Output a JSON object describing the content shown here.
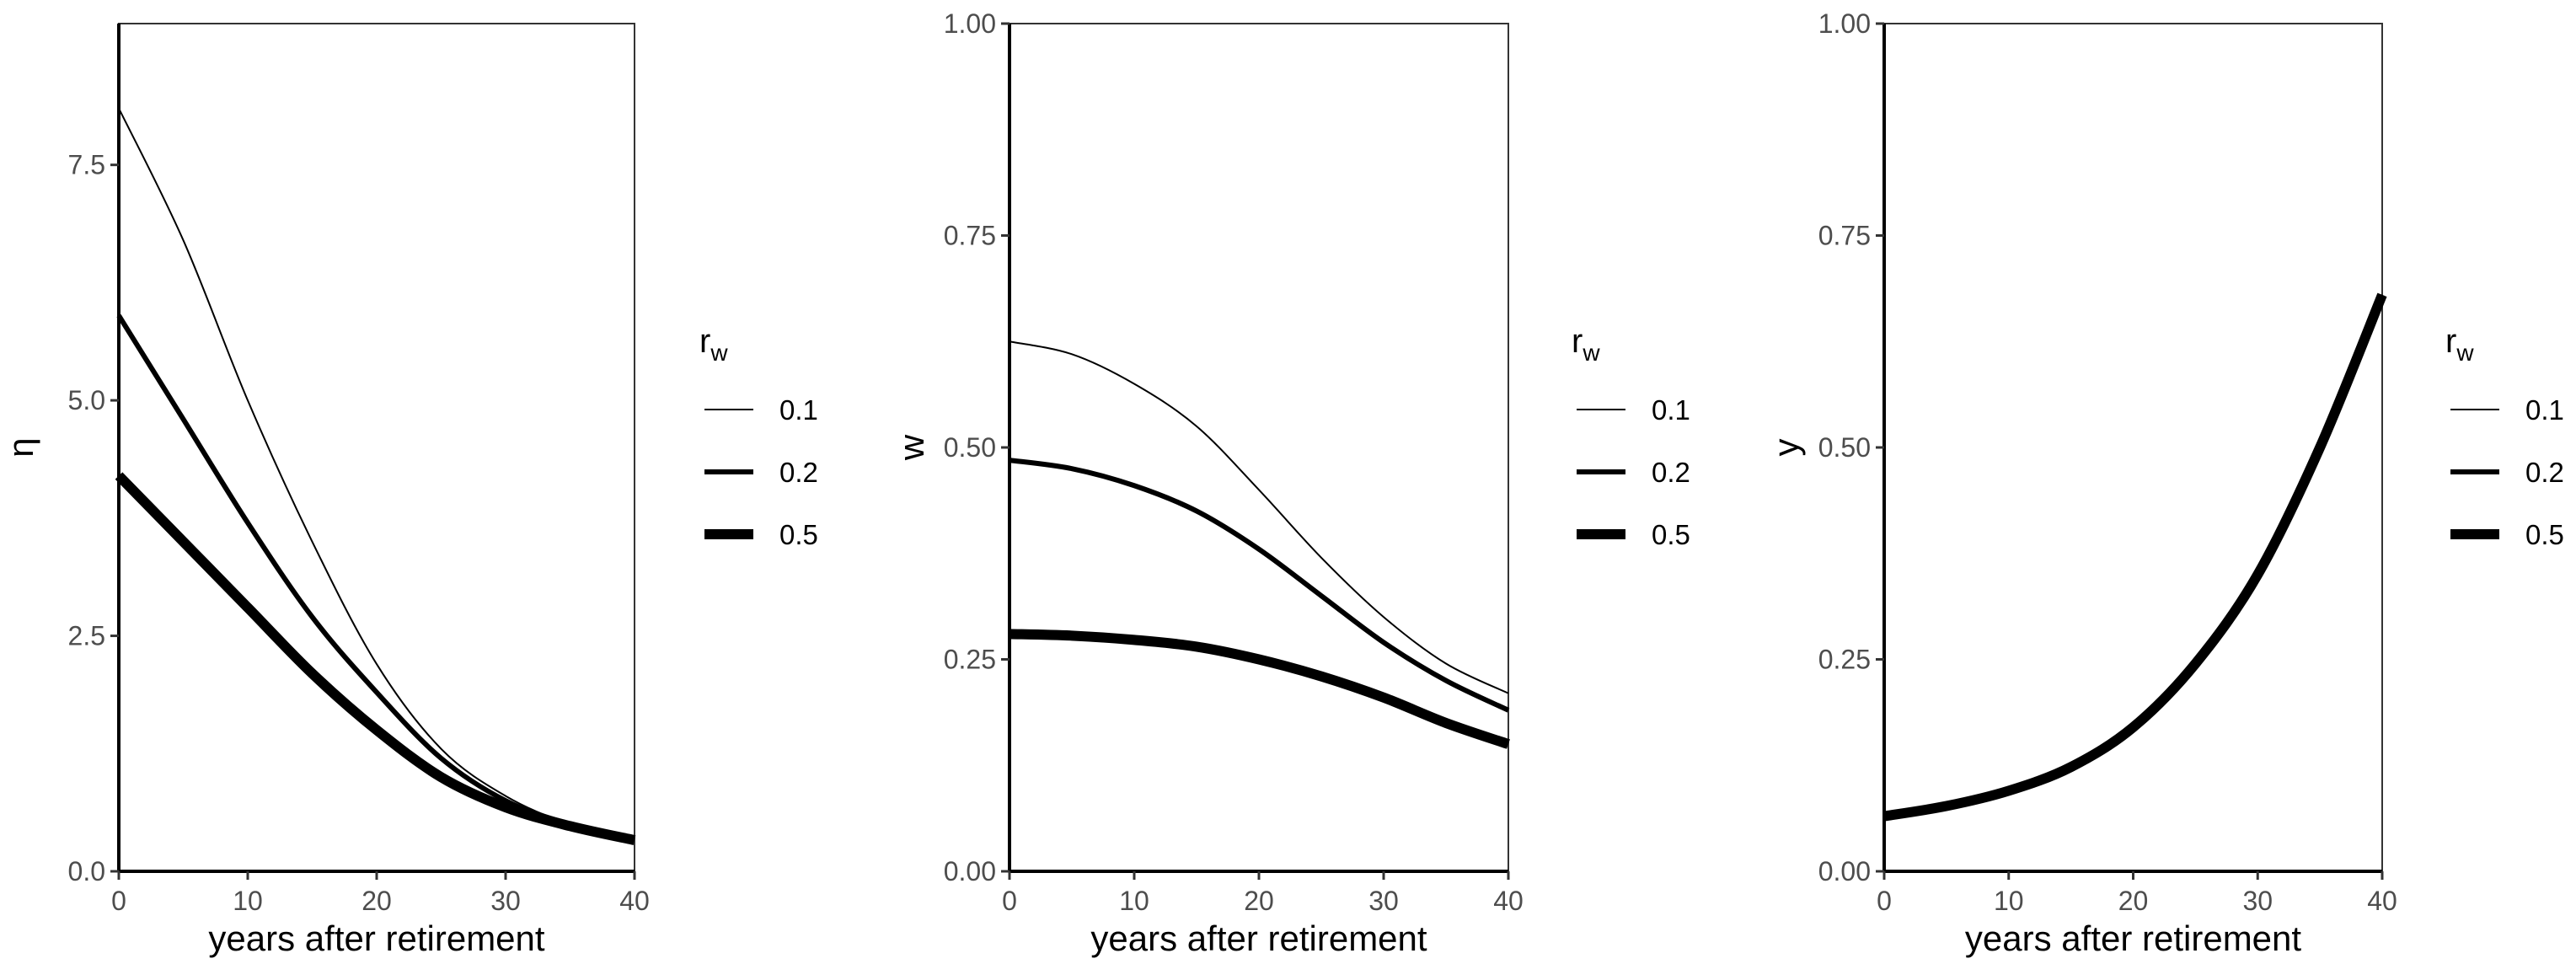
{
  "chart_data": [
    {
      "type": "line",
      "xlabel": "years after retirement",
      "ylabel": "η",
      "xlim": [
        0,
        40
      ],
      "ylim": [
        0,
        9
      ],
      "x_ticks": [
        0,
        10,
        20,
        30,
        40
      ],
      "y_ticks": [
        0.0,
        2.5,
        5.0,
        7.5
      ],
      "x_tick_labels": [
        "0",
        "10",
        "20",
        "30",
        "40"
      ],
      "y_tick_labels": [
        "0.0",
        "2.5",
        "5.0",
        "7.5"
      ],
      "grid": false,
      "legend": {
        "title_main": "r",
        "title_sub": "w",
        "position": "right",
        "entries": [
          "0.1",
          "0.2",
          "0.5"
        ]
      },
      "series": [
        {
          "name": "0.1",
          "x": [
            0,
            5,
            10,
            15,
            20,
            25,
            30,
            35,
            40
          ],
          "y": [
            8.1,
            6.7,
            5.0,
            3.5,
            2.2,
            1.3,
            0.8,
            0.5,
            0.35
          ]
        },
        {
          "name": "0.2",
          "x": [
            0,
            5,
            10,
            15,
            20,
            25,
            30,
            35,
            40
          ],
          "y": [
            5.9,
            4.8,
            3.7,
            2.7,
            1.9,
            1.2,
            0.75,
            0.5,
            0.35
          ]
        },
        {
          "name": "0.5",
          "x": [
            0,
            5,
            10,
            15,
            20,
            25,
            30,
            35,
            40
          ],
          "y": [
            4.2,
            3.5,
            2.8,
            2.1,
            1.5,
            1.0,
            0.68,
            0.48,
            0.33
          ]
        }
      ]
    },
    {
      "type": "line",
      "xlabel": "years after retirement",
      "ylabel": "w",
      "xlim": [
        0,
        40
      ],
      "ylim": [
        0,
        1
      ],
      "x_ticks": [
        0,
        10,
        20,
        30,
        40
      ],
      "y_ticks": [
        0.0,
        0.25,
        0.5,
        0.75,
        1.0
      ],
      "x_tick_labels": [
        "0",
        "10",
        "20",
        "30",
        "40"
      ],
      "y_tick_labels": [
        "0.00",
        "0.25",
        "0.50",
        "0.75",
        "1.00"
      ],
      "grid": false,
      "legend": {
        "title_main": "r",
        "title_sub": "w",
        "position": "right",
        "entries": [
          "0.1",
          "0.2",
          "0.5"
        ]
      },
      "series": [
        {
          "name": "0.1",
          "x": [
            0,
            5,
            10,
            15,
            20,
            25,
            30,
            35,
            40
          ],
          "y": [
            0.625,
            0.61,
            0.575,
            0.525,
            0.45,
            0.37,
            0.3,
            0.245,
            0.21
          ]
        },
        {
          "name": "0.2",
          "x": [
            0,
            5,
            10,
            15,
            20,
            25,
            30,
            35,
            40
          ],
          "y": [
            0.485,
            0.475,
            0.455,
            0.425,
            0.38,
            0.325,
            0.27,
            0.225,
            0.19
          ]
        },
        {
          "name": "0.5",
          "x": [
            0,
            5,
            10,
            15,
            20,
            25,
            30,
            35,
            40
          ],
          "y": [
            0.28,
            0.278,
            0.273,
            0.265,
            0.25,
            0.23,
            0.205,
            0.175,
            0.15
          ]
        }
      ]
    },
    {
      "type": "line",
      "xlabel": "years after retirement",
      "ylabel": "y",
      "xlim": [
        0,
        40
      ],
      "ylim": [
        0,
        1
      ],
      "x_ticks": [
        0,
        10,
        20,
        30,
        40
      ],
      "y_ticks": [
        0.0,
        0.25,
        0.5,
        0.75,
        1.0
      ],
      "x_tick_labels": [
        "0",
        "10",
        "20",
        "30",
        "40"
      ],
      "y_tick_labels": [
        "0.00",
        "0.25",
        "0.50",
        "0.75",
        "1.00"
      ],
      "grid": false,
      "legend": {
        "title_main": "r",
        "title_sub": "w",
        "position": "right",
        "entries": [
          "0.1",
          "0.2",
          "0.5"
        ]
      },
      "series": [
        {
          "name": "0.1",
          "x": [
            0,
            5,
            10,
            15,
            20,
            25,
            30,
            35,
            40
          ],
          "y": [
            0.065,
            0.077,
            0.095,
            0.123,
            0.17,
            0.245,
            0.35,
            0.5,
            0.68
          ]
        },
        {
          "name": "0.2",
          "x": [
            0,
            5,
            10,
            15,
            20,
            25,
            30,
            35,
            40
          ],
          "y": [
            0.065,
            0.077,
            0.095,
            0.123,
            0.17,
            0.245,
            0.35,
            0.5,
            0.68
          ]
        },
        {
          "name": "0.5",
          "x": [
            0,
            5,
            10,
            15,
            20,
            25,
            30,
            35,
            40
          ],
          "y": [
            0.065,
            0.077,
            0.095,
            0.123,
            0.17,
            0.245,
            0.35,
            0.5,
            0.68
          ]
        }
      ]
    }
  ]
}
